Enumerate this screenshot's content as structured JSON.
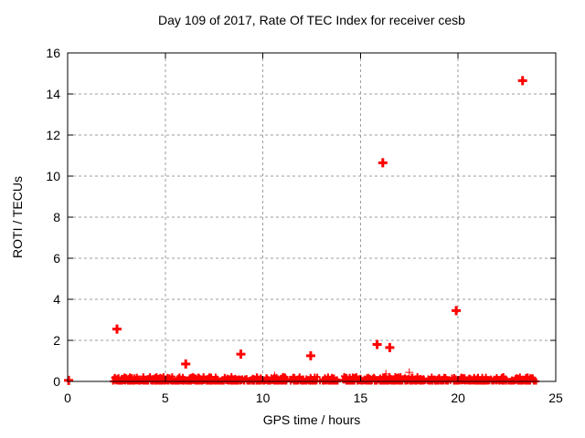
{
  "title": "Day 109 of 2017, Rate Of TEC Index for receiver cesb",
  "colors": {
    "series": "#ff0000",
    "grid": "#9e9e9e",
    "border": "#000000",
    "background": "#ffffff"
  },
  "chart_data": {
    "type": "scatter",
    "title": "Day 109 of 2017, Rate Of TEC Index for receiver cesb",
    "xlabel": "GPS time / hours",
    "ylabel": "ROTI / TECUs",
    "xlim": [
      0,
      25
    ],
    "ylim": [
      0,
      16
    ],
    "x_ticks": [
      0,
      5,
      10,
      15,
      20,
      25
    ],
    "y_ticks": [
      0,
      2,
      4,
      6,
      8,
      10,
      12,
      14,
      16
    ],
    "grid": "dashed",
    "legend": "none",
    "marker": "plus",
    "series_color": "#ff0000",
    "outlier_points": [
      [
        0.05,
        0.05
      ],
      [
        2.53,
        2.55
      ],
      [
        6.05,
        0.85
      ],
      [
        8.87,
        1.33
      ],
      [
        12.45,
        1.25
      ],
      [
        15.85,
        1.8
      ],
      [
        16.14,
        10.65
      ],
      [
        16.5,
        1.65
      ],
      [
        19.9,
        3.45
      ],
      [
        23.3,
        14.65
      ]
    ],
    "minor_points": [
      [
        10.6,
        0.27
      ],
      [
        16.3,
        0.36
      ],
      [
        17.5,
        0.44
      ]
    ],
    "baseline_band": {
      "description": "dense cluster of ROTI samples between 0 and ~0.25 TECUs",
      "segments": [
        [
          2.3,
          13.88
        ],
        [
          14.1,
          24.0
        ]
      ],
      "value_range": [
        0,
        0.25
      ],
      "points_per_hour": 48
    }
  }
}
